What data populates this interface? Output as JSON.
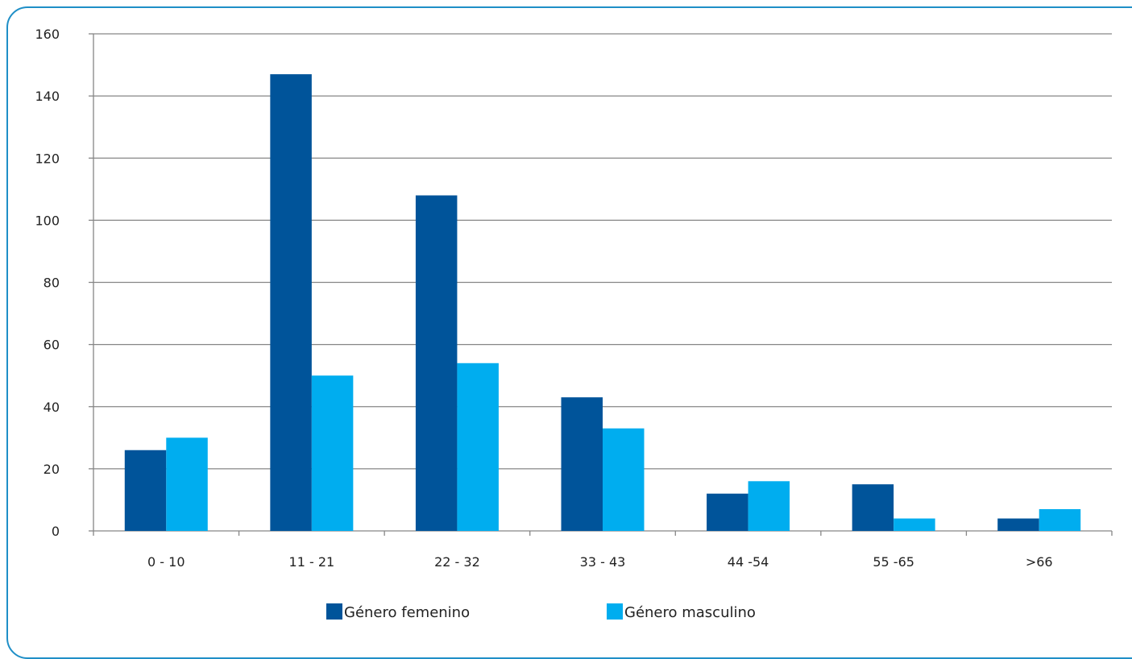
{
  "chart_data": {
    "type": "bar",
    "title": "",
    "xlabel": "",
    "ylabel": "",
    "categories": [
      "0 - 10",
      "11 - 21",
      "22 - 32",
      "33 - 43",
      "44 -54",
      "55 -65",
      ">66"
    ],
    "series": [
      {
        "name": "Género femenino",
        "color": "#00549a",
        "values": [
          26,
          147,
          108,
          43,
          12,
          15,
          4
        ]
      },
      {
        "name": "Género masculino",
        "color": "#00adef",
        "values": [
          30,
          50,
          54,
          33,
          16,
          4,
          7
        ]
      }
    ],
    "ylim": [
      0,
      160
    ],
    "yticks": [
      0,
      20,
      40,
      60,
      80,
      100,
      120,
      140,
      160
    ],
    "grid": true,
    "legend_position": "bottom"
  },
  "colors": {
    "frame": "#1f8fc7",
    "grid": "#868686"
  }
}
